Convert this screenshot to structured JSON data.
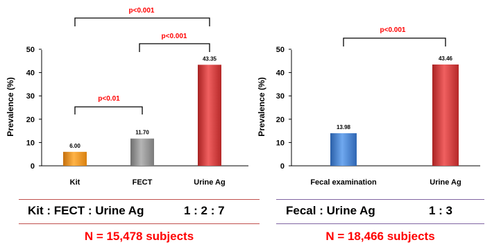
{
  "colors": {
    "significance": "#ff0000",
    "orange": "#f39a1e",
    "gray": "#8c8c8c",
    "red": "#d93a3a",
    "blue": "#3d7fd1",
    "left_rule": "#c0504d",
    "right_rule": "#8064a2",
    "n_text": "#ff0000"
  },
  "chart_data": [
    {
      "type": "bar",
      "ylabel": "Prevalence (%)",
      "xlabel": "",
      "ylim": [
        0,
        50
      ],
      "yticks": [
        "0",
        "10",
        "20",
        "30",
        "40",
        "50"
      ],
      "categories": [
        "Kit",
        "FECT",
        "Urine Ag"
      ],
      "values": [
        6.0,
        11.7,
        43.35
      ],
      "value_labels": [
        "6.00",
        "11.70",
        "43.35"
      ],
      "bar_colors": [
        "orange",
        "gray",
        "red"
      ],
      "annotations": [
        "p<0.01",
        "p<0.001",
        "p<0.001"
      ]
    },
    {
      "type": "bar",
      "ylabel": "Prevalence (%)",
      "xlabel": "",
      "ylim": [
        0,
        50
      ],
      "yticks": [
        "0",
        "10",
        "20",
        "30",
        "40",
        "50"
      ],
      "categories": [
        "Fecal examination",
        "Urine Ag"
      ],
      "values": [
        13.98,
        43.46
      ],
      "value_labels": [
        "13.98",
        "43.46"
      ],
      "bar_colors": [
        "blue",
        "red"
      ],
      "annotations": [
        "p<0.001"
      ]
    }
  ],
  "left_panel": {
    "ratio_label": "Kit : FECT : Urine Ag",
    "ratio_value": "1 : 2 : 7",
    "n_label": "N = 15,478 subjects"
  },
  "right_panel": {
    "ratio_label": "Fecal : Urine Ag",
    "ratio_value": "1 : 3",
    "n_label": "N = 18,466 subjects"
  }
}
